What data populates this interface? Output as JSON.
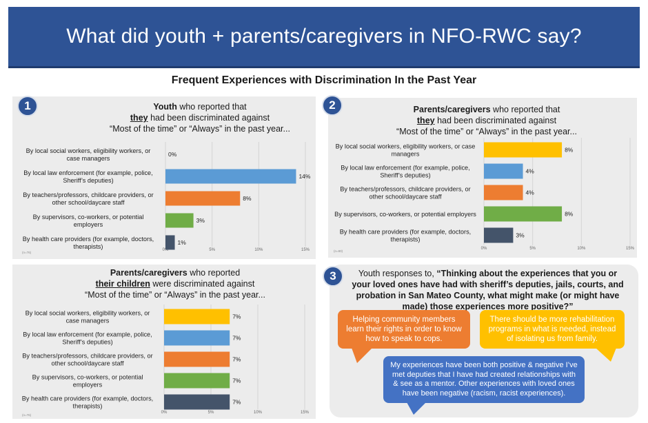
{
  "header": {
    "title": "What did youth + parents/caregivers in NFO-RWC say?"
  },
  "subtitle": "Frequent Experiences with Discrimination In the Past Year",
  "colors": {
    "yellow": "#ffc000",
    "blue": "#5b9bd5",
    "orange": "#ed7d31",
    "green": "#70ad47",
    "navy": "#44546a",
    "banner": "#2e5395"
  },
  "chart_data": [
    {
      "type": "bar",
      "badge": "1",
      "title_parts": [
        "Youth",
        " who reported that",
        "they",
        " had been discriminated against",
        "“Most of the time” or “Always” in the past year..."
      ],
      "categories": [
        [
          "By local social workers, eligibility workers, or",
          "case managers"
        ],
        [
          "By local law enforcement (for example, police,",
          "Sheriff’s deputies)"
        ],
        [
          "By teachers/professors, childcare providers, or",
          "other school/daycare staff"
        ],
        [
          "By supervisors, co-workers, or potential",
          "employers"
        ],
        [
          "By health care providers (for example, doctors,",
          "therapists)"
        ]
      ],
      "values": [
        0,
        14,
        8,
        3,
        1
      ],
      "value_labels": [
        "0%",
        "14%",
        "8%",
        "3%",
        "1%"
      ],
      "bar_colors": [
        "#ffc000",
        "#5b9bd5",
        "#ed7d31",
        "#70ad47",
        "#44546a"
      ],
      "xlim": [
        0,
        15
      ],
      "xticks": [
        "0%",
        "5%",
        "10%",
        "15%"
      ],
      "n_note": "(n=76)"
    },
    {
      "type": "bar",
      "badge": "2",
      "title_parts": [
        "Parents/caregivers",
        " who reported that",
        "they",
        " had been discriminated against",
        "“Most of the time” or “Always” in the past year..."
      ],
      "categories": [
        [
          "By local social workers, eligibility workers, or case",
          "managers"
        ],
        [
          "By local law enforcement (for example, police,",
          "Sheriff’s deputies)"
        ],
        [
          "By teachers/professors, childcare providers, or",
          "other school/daycare staff"
        ],
        [
          "By supervisors, co-workers, or potential employers"
        ],
        [
          "By health care providers (for example, doctors,",
          "therapists)"
        ]
      ],
      "values": [
        8,
        4,
        4,
        8,
        3
      ],
      "value_labels": [
        "8%",
        "4%",
        "4%",
        "8%",
        "3%"
      ],
      "bar_colors": [
        "#ffc000",
        "#5b9bd5",
        "#ed7d31",
        "#70ad47",
        "#44546a"
      ],
      "xlim": [
        0,
        15
      ],
      "xticks": [
        "0%",
        "5%",
        "10%",
        "15%"
      ],
      "n_note": "(n=80)"
    },
    {
      "type": "bar",
      "badge": "",
      "title_parts": [
        "Parents/caregivers",
        " who reported",
        "their children",
        " were discriminated against",
        "“Most of the time” or “Always” in the past year..."
      ],
      "categories": [
        [
          "By local social workers, eligibility workers, or",
          "case managers"
        ],
        [
          "By local law enforcement (for example, police,",
          "Sheriff’s deputies)"
        ],
        [
          "By teachers/professors, childcare providers, or",
          "other school/daycare staff"
        ],
        [
          "By supervisors, co-workers, or potential",
          "employers"
        ],
        [
          "By health care providers (for example, doctors,",
          "therapists)"
        ]
      ],
      "values": [
        7,
        7,
        7,
        7,
        7
      ],
      "value_labels": [
        "7%",
        "7%",
        "7%",
        "7%",
        "7%"
      ],
      "bar_colors": [
        "#ffc000",
        "#5b9bd5",
        "#ed7d31",
        "#70ad47",
        "#44546a"
      ],
      "xlim": [
        0,
        15
      ],
      "xticks": [
        "0%",
        "5%",
        "10%",
        "15%"
      ],
      "n_note": "(n=76)"
    }
  ],
  "quotes": {
    "badge": "3",
    "prompt_lead": "Youth responses to, ",
    "prompt_bold": "“Thinking about the experiences that you or your loved ones have had with sheriff’s deputies, jails, courts, and probation in San Mateo County, what might make (or might have made) those experiences more positive?”",
    "bubbles": [
      {
        "text": "Helping community members learn their rights  in order to know how to speak to cops.",
        "color": "#ed7d31"
      },
      {
        "text": "There should be more rehabilitation programs in what is needed, instead of isolating us from family.",
        "color": "#ffc000"
      },
      {
        "text": "My experiences have been both positive & negative  I’ve met deputies that I have had created relationships with & see as a mentor. Other experiences with loved ones have been negative (racism, racist experiences).",
        "color": "#4472c4"
      }
    ]
  }
}
